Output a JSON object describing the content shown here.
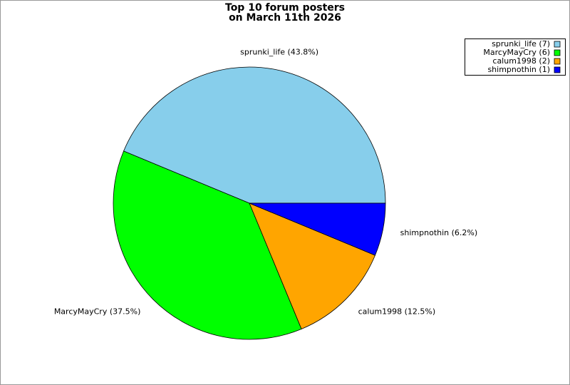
{
  "chart_data": {
    "type": "pie",
    "title": [
      "Top 10 forum posters",
      "on March 11th 2026"
    ],
    "categories": [
      "sprunki_life",
      "MarcyMayCry",
      "calum1998",
      "shimpnothin"
    ],
    "values": [
      7,
      6,
      2,
      1
    ],
    "value_labels": [
      "sprunki_life (43.8%)",
      "MarcyMayCry (37.5%)",
      "calum1998 (12.5%)",
      "shimpnothin (6.2%)"
    ],
    "legend_labels": [
      "sprunki_life (7)",
      "MarcyMayCry (6)",
      "calum1998 (2)",
      "shimpnothin (1)"
    ],
    "colors": [
      "#87ceeb",
      "#00ff00",
      "#ffa500",
      "#0000ff"
    ],
    "legend": "top-right"
  }
}
